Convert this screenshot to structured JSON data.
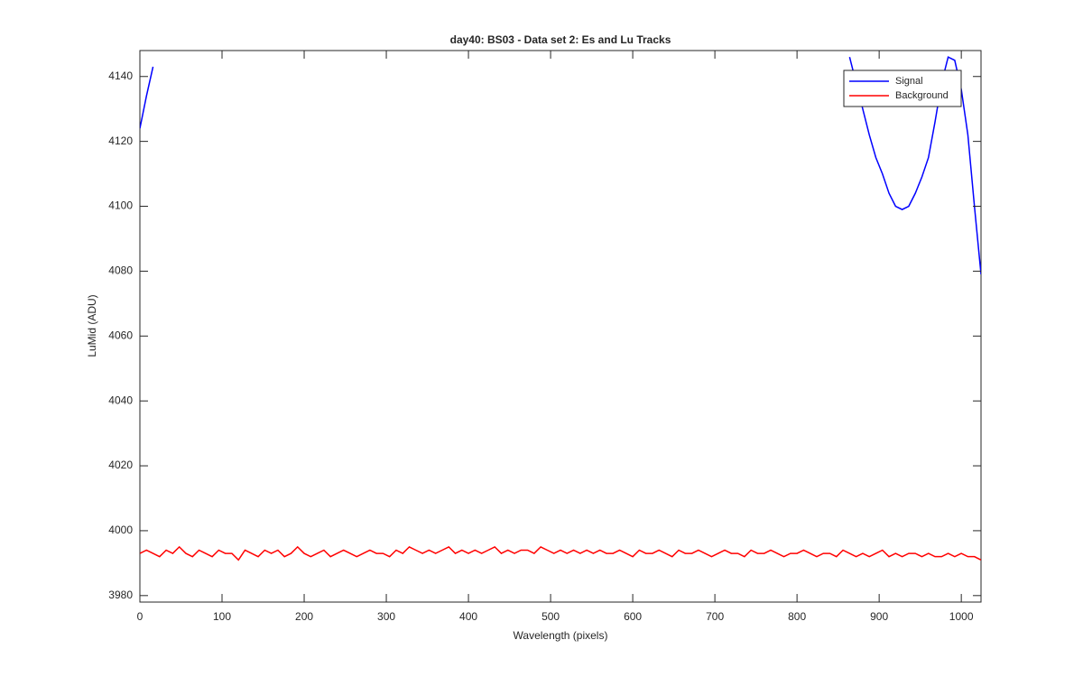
{
  "chart_data": {
    "type": "line",
    "title": "day40: BS03 - Data set 2: Es and Lu Tracks",
    "x_label": "Wavelength (pixels)",
    "y_label": "LuMid (ADU)",
    "x": [
      0,
      8,
      16,
      24,
      32,
      40,
      48,
      56,
      64,
      72,
      80,
      88,
      96,
      104,
      112,
      120,
      128,
      136,
      144,
      152,
      160,
      168,
      176,
      184,
      192,
      200,
      208,
      216,
      224,
      232,
      240,
      248,
      256,
      264,
      272,
      280,
      288,
      296,
      304,
      312,
      320,
      328,
      336,
      344,
      352,
      360,
      368,
      376,
      384,
      392,
      400,
      408,
      416,
      424,
      432,
      440,
      448,
      456,
      464,
      472,
      480,
      488,
      496,
      504,
      512,
      520,
      528,
      536,
      544,
      552,
      560,
      568,
      576,
      584,
      592,
      600,
      608,
      616,
      624,
      632,
      640,
      648,
      656,
      664,
      672,
      680,
      688,
      696,
      704,
      712,
      720,
      728,
      736,
      744,
      752,
      760,
      768,
      776,
      784,
      792,
      800,
      808,
      816,
      824,
      832,
      840,
      848,
      856,
      864,
      872,
      880,
      888,
      896,
      904,
      912,
      920,
      928,
      936,
      944,
      952,
      960,
      968,
      976,
      984,
      992,
      1000,
      1008,
      1016,
      1024
    ],
    "series": [
      {
        "name": "Signal",
        "color": "#0000ff",
        "values": [
          4124,
          4134,
          4143,
          null,
          null,
          null,
          null,
          null,
          null,
          null,
          null,
          null,
          null,
          null,
          null,
          null,
          null,
          null,
          null,
          null,
          null,
          null,
          null,
          null,
          null,
          null,
          null,
          null,
          null,
          null,
          null,
          null,
          null,
          null,
          null,
          null,
          null,
          null,
          null,
          null,
          null,
          null,
          null,
          null,
          null,
          null,
          null,
          null,
          null,
          null,
          null,
          null,
          null,
          null,
          null,
          null,
          null,
          null,
          null,
          null,
          null,
          null,
          null,
          null,
          null,
          null,
          null,
          null,
          null,
          null,
          null,
          null,
          null,
          null,
          null,
          null,
          null,
          null,
          null,
          null,
          null,
          null,
          null,
          null,
          null,
          null,
          null,
          null,
          null,
          null,
          null,
          null,
          null,
          null,
          null,
          null,
          null,
          null,
          null,
          null,
          null,
          null,
          null,
          null,
          null,
          null,
          null,
          null,
          4146,
          4138,
          4130,
          4122,
          4115,
          4110,
          4104,
          4100,
          4099,
          4100,
          4104,
          4109,
          4115,
          4126,
          4138,
          4146,
          4145,
          4136,
          4122,
          4100,
          4079
        ]
      },
      {
        "name": "Background",
        "color": "#ff0000",
        "values": [
          3993,
          3994,
          3993,
          3992,
          3994,
          3993,
          3995,
          3993,
          3992,
          3994,
          3993,
          3992,
          3994,
          3993,
          3993,
          3991,
          3994,
          3993,
          3992,
          3994,
          3993,
          3994,
          3992,
          3993,
          3995,
          3993,
          3992,
          3993,
          3994,
          3992,
          3993,
          3994,
          3993,
          3992,
          3993,
          3994,
          3993,
          3993,
          3992,
          3994,
          3993,
          3995,
          3994,
          3993,
          3994,
          3993,
          3994,
          3995,
          3993,
          3994,
          3993,
          3994,
          3993,
          3994,
          3995,
          3993,
          3994,
          3993,
          3994,
          3994,
          3993,
          3995,
          3994,
          3993,
          3994,
          3993,
          3994,
          3993,
          3994,
          3993,
          3994,
          3993,
          3993,
          3994,
          3993,
          3992,
          3994,
          3993,
          3993,
          3994,
          3993,
          3992,
          3994,
          3993,
          3993,
          3994,
          3993,
          3992,
          3993,
          3994,
          3993,
          3993,
          3992,
          3994,
          3993,
          3993,
          3994,
          3993,
          3992,
          3993,
          3993,
          3994,
          3993,
          3992,
          3993,
          3993,
          3992,
          3994,
          3993,
          3992,
          3993,
          3992,
          3993,
          3994,
          3992,
          3993,
          3992,
          3993,
          3993,
          3992,
          3993,
          3992,
          3992,
          3993,
          3992,
          3993,
          3992,
          3992,
          3991
        ]
      }
    ],
    "xlim": [
      0,
      1024
    ],
    "ylim": [
      3978,
      4148
    ],
    "xticks": [
      0,
      100,
      200,
      300,
      400,
      500,
      600,
      700,
      800,
      900,
      1000
    ],
    "yticks": [
      3980,
      4000,
      4020,
      4040,
      4060,
      4080,
      4100,
      4120,
      4140
    ],
    "legend": "upper right"
  }
}
